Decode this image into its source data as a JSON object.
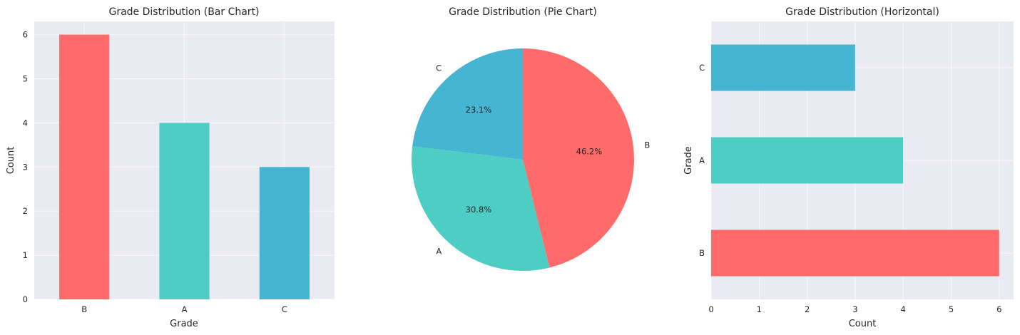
{
  "chart_data": [
    {
      "type": "bar",
      "title": "Grade Distribution (Bar Chart)",
      "xlabel": "Grade",
      "ylabel": "Count",
      "categories": [
        "B",
        "A",
        "C"
      ],
      "values": [
        6,
        4,
        3
      ],
      "colors": [
        "#ff6b6b",
        "#4ecdc4",
        "#45b5d1"
      ],
      "ylim": [
        0,
        6.3
      ],
      "yticks": [
        "0",
        "1",
        "2",
        "3",
        "4",
        "5",
        "6"
      ],
      "grid": true
    },
    {
      "type": "pie",
      "title": "Grade Distribution (Pie Chart)",
      "categories": [
        "C",
        "A",
        "B"
      ],
      "values": [
        3,
        4,
        6
      ],
      "percent_labels": [
        "23.1%",
        "30.8%",
        "46.2%"
      ],
      "colors": [
        "#45b5d1",
        "#4ecdc4",
        "#ff6b6b"
      ]
    },
    {
      "type": "bar",
      "orientation": "horizontal",
      "title": "Grade Distribution (Horizontal)",
      "xlabel": "Count",
      "ylabel": "Grade",
      "categories": [
        "B",
        "A",
        "C"
      ],
      "values": [
        6,
        4,
        3
      ],
      "colors": [
        "#ff6b6b",
        "#4ecdc4",
        "#45b5d1"
      ],
      "xlim": [
        0,
        6.3
      ],
      "xticks": [
        "0",
        "1",
        "2",
        "3",
        "4",
        "5",
        "6"
      ],
      "grid": true
    }
  ]
}
